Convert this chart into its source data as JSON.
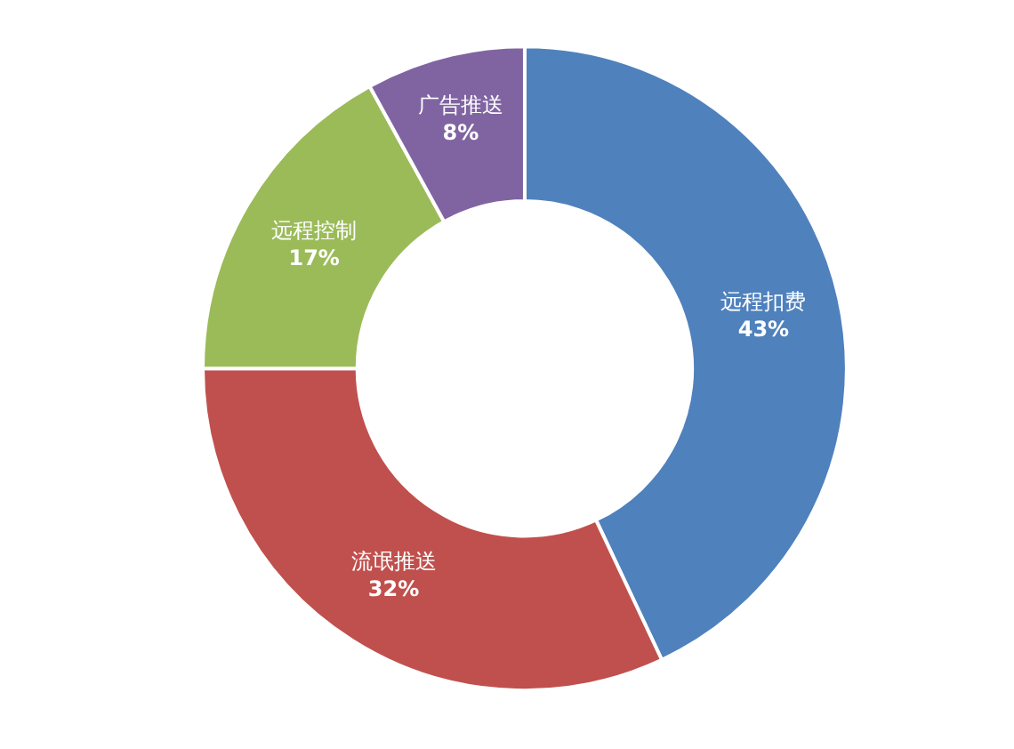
{
  "chart_data": {
    "type": "donut",
    "categories": [
      "远程扣费",
      "流氓推送",
      "远程控制",
      "广告推送"
    ],
    "values": [
      43,
      32,
      17,
      8
    ],
    "colors": [
      "#4f81bd",
      "#c0504d",
      "#9bbb59",
      "#8064a2"
    ],
    "value_labels": [
      "43%",
      "32%",
      "17%",
      "8%"
    ],
    "legend": false
  }
}
